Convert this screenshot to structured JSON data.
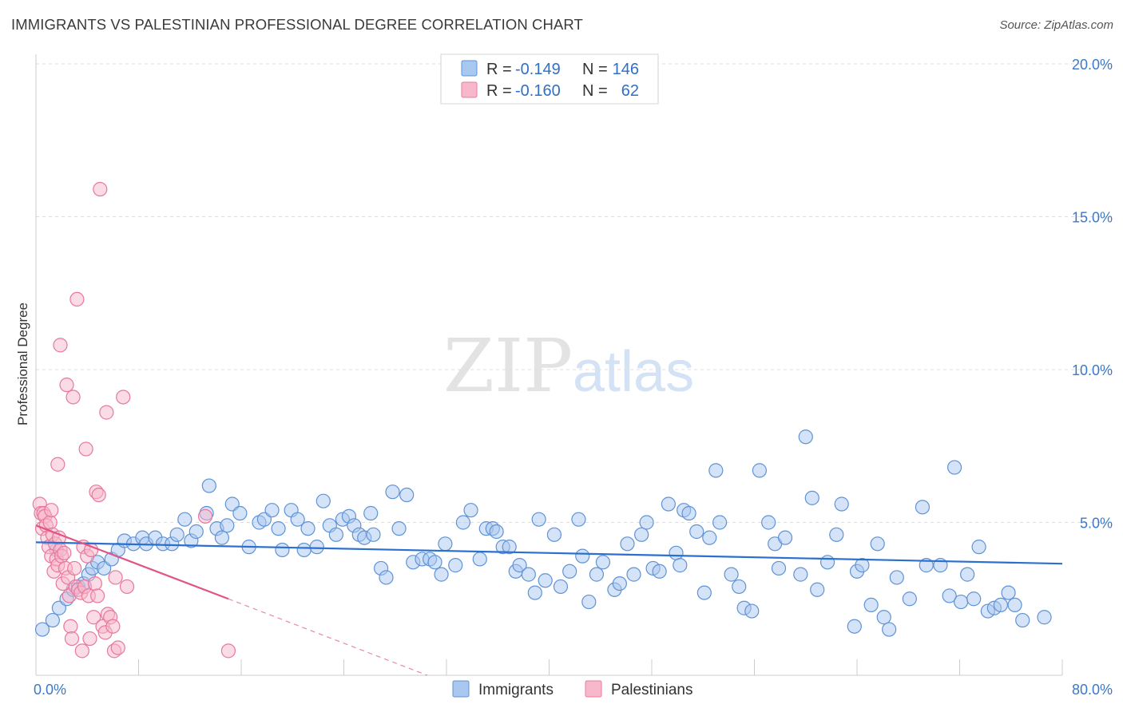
{
  "title": "IMMIGRANTS VS PALESTINIAN PROFESSIONAL DEGREE CORRELATION CHART",
  "source": "Source: ZipAtlas.com",
  "watermark": {
    "zip": "ZIP",
    "atlas": "atlas"
  },
  "legend": {
    "rows": [
      {
        "r_label": "R =",
        "r_value": "-0.149",
        "n_label": "N =",
        "n_value": "146"
      },
      {
        "r_label": "R =",
        "r_value": "-0.160",
        "n_label": "N =",
        "n_value": "62"
      }
    ]
  },
  "bottom_legend": [
    "Immigrants",
    "Palestinians"
  ],
  "colors": {
    "immigrants_fill": "#a9c8ef",
    "immigrants_stroke": "#5f93d6",
    "immigrants_line": "#2b6fcf",
    "palestinians_fill": "#f7b8cb",
    "palestinians_stroke": "#e8789c",
    "palestinians_line": "#e05585",
    "tick_color": "#3d78c7",
    "grid": "#dddddd"
  },
  "chart_data": {
    "type": "scatter",
    "title": "IMMIGRANTS VS PALESTINIAN PROFESSIONAL DEGREE CORRELATION CHART",
    "xlabel": "",
    "ylabel": "Professional Degree",
    "xlim": [
      0,
      80
    ],
    "ylim": [
      0,
      20
    ],
    "x_tick_labels": [
      "0.0%",
      "80.0%"
    ],
    "y_ticks": [
      {
        "value": 5,
        "label": "5.0%"
      },
      {
        "value": 10,
        "label": "10.0%"
      },
      {
        "value": 15,
        "label": "15.0%"
      },
      {
        "value": 20,
        "label": "20.0%"
      }
    ],
    "grid": "horizontal dashed",
    "legend_position": "top-center",
    "series": [
      {
        "name": "Immigrants",
        "r": -0.149,
        "n": 146,
        "trend": {
          "x0": 0,
          "y0": 4.35,
          "x1": 80,
          "y1": 3.65
        },
        "points": [
          [
            0.5,
            1.5
          ],
          [
            1.3,
            1.8
          ],
          [
            1.8,
            2.2
          ],
          [
            2.4,
            2.5
          ],
          [
            2.9,
            2.8
          ],
          [
            3.3,
            2.9
          ],
          [
            3.7,
            3.0
          ],
          [
            4.1,
            3.3
          ],
          [
            4.4,
            3.5
          ],
          [
            4.8,
            3.7
          ],
          [
            5.3,
            3.5
          ],
          [
            5.9,
            3.8
          ],
          [
            6.4,
            4.1
          ],
          [
            6.9,
            4.4
          ],
          [
            7.6,
            4.3
          ],
          [
            8.3,
            4.5
          ],
          [
            8.6,
            4.3
          ],
          [
            9.3,
            4.5
          ],
          [
            9.9,
            4.3
          ],
          [
            10.6,
            4.3
          ],
          [
            11.0,
            4.6
          ],
          [
            11.6,
            5.1
          ],
          [
            12.1,
            4.4
          ],
          [
            12.5,
            4.7
          ],
          [
            13.3,
            5.3
          ],
          [
            13.5,
            6.2
          ],
          [
            14.1,
            4.8
          ],
          [
            14.5,
            4.5
          ],
          [
            14.9,
            4.9
          ],
          [
            15.3,
            5.6
          ],
          [
            15.9,
            5.3
          ],
          [
            16.6,
            4.2
          ],
          [
            17.4,
            5.0
          ],
          [
            17.8,
            5.1
          ],
          [
            18.4,
            5.4
          ],
          [
            18.9,
            4.8
          ],
          [
            19.2,
            4.1
          ],
          [
            19.9,
            5.4
          ],
          [
            20.4,
            5.1
          ],
          [
            20.9,
            4.1
          ],
          [
            21.2,
            4.8
          ],
          [
            21.9,
            4.2
          ],
          [
            22.4,
            5.7
          ],
          [
            22.9,
            4.9
          ],
          [
            23.4,
            4.6
          ],
          [
            23.9,
            5.1
          ],
          [
            24.4,
            5.2
          ],
          [
            24.8,
            4.9
          ],
          [
            25.2,
            4.6
          ],
          [
            25.6,
            4.5
          ],
          [
            26.1,
            5.3
          ],
          [
            26.3,
            4.6
          ],
          [
            26.9,
            3.5
          ],
          [
            27.3,
            3.2
          ],
          [
            27.8,
            6.0
          ],
          [
            28.3,
            4.8
          ],
          [
            28.9,
            5.9
          ],
          [
            29.4,
            3.7
          ],
          [
            30.1,
            3.8
          ],
          [
            30.7,
            3.8
          ],
          [
            31.1,
            3.7
          ],
          [
            31.6,
            3.3
          ],
          [
            31.9,
            4.3
          ],
          [
            32.7,
            3.6
          ],
          [
            33.3,
            5.0
          ],
          [
            33.9,
            5.4
          ],
          [
            34.6,
            3.8
          ],
          [
            35.1,
            4.8
          ],
          [
            35.6,
            4.8
          ],
          [
            35.9,
            4.7
          ],
          [
            36.4,
            4.2
          ],
          [
            36.9,
            4.2
          ],
          [
            37.4,
            3.4
          ],
          [
            37.7,
            3.6
          ],
          [
            38.4,
            3.3
          ],
          [
            38.9,
            2.7
          ],
          [
            39.2,
            5.1
          ],
          [
            39.7,
            3.1
          ],
          [
            40.4,
            4.6
          ],
          [
            40.9,
            2.9
          ],
          [
            41.6,
            3.4
          ],
          [
            42.3,
            5.1
          ],
          [
            42.6,
            3.9
          ],
          [
            43.1,
            2.4
          ],
          [
            43.7,
            3.3
          ],
          [
            44.2,
            3.7
          ],
          [
            45.1,
            2.8
          ],
          [
            45.5,
            3.0
          ],
          [
            46.1,
            4.3
          ],
          [
            46.6,
            3.3
          ],
          [
            47.2,
            4.6
          ],
          [
            47.6,
            5.0
          ],
          [
            48.1,
            3.5
          ],
          [
            48.6,
            3.4
          ],
          [
            49.3,
            5.6
          ],
          [
            49.9,
            4.0
          ],
          [
            50.2,
            3.6
          ],
          [
            50.5,
            5.4
          ],
          [
            50.9,
            5.3
          ],
          [
            51.5,
            4.7
          ],
          [
            52.1,
            2.7
          ],
          [
            52.5,
            4.5
          ],
          [
            53.0,
            6.7
          ],
          [
            53.3,
            5.0
          ],
          [
            54.2,
            3.3
          ],
          [
            54.8,
            2.9
          ],
          [
            55.2,
            2.2
          ],
          [
            55.8,
            2.1
          ],
          [
            56.4,
            6.7
          ],
          [
            57.1,
            5.0
          ],
          [
            57.6,
            4.3
          ],
          [
            57.9,
            3.5
          ],
          [
            58.4,
            4.5
          ],
          [
            59.6,
            3.3
          ],
          [
            60.0,
            7.8
          ],
          [
            60.5,
            5.8
          ],
          [
            60.9,
            2.8
          ],
          [
            61.7,
            3.7
          ],
          [
            62.4,
            4.6
          ],
          [
            62.8,
            5.6
          ],
          [
            64.0,
            3.4
          ],
          [
            64.4,
            3.6
          ],
          [
            65.1,
            2.3
          ],
          [
            65.6,
            4.3
          ],
          [
            66.1,
            1.9
          ],
          [
            66.5,
            1.5
          ],
          [
            67.1,
            3.2
          ],
          [
            68.1,
            2.5
          ],
          [
            69.1,
            5.5
          ],
          [
            69.4,
            3.6
          ],
          [
            70.5,
            3.6
          ],
          [
            71.2,
            2.6
          ],
          [
            71.6,
            6.8
          ],
          [
            72.1,
            2.4
          ],
          [
            72.6,
            3.3
          ],
          [
            73.1,
            2.5
          ],
          [
            73.5,
            4.2
          ],
          [
            74.2,
            2.1
          ],
          [
            74.7,
            2.2
          ],
          [
            75.2,
            2.3
          ],
          [
            75.8,
            2.7
          ],
          [
            76.3,
            2.3
          ],
          [
            76.9,
            1.8
          ],
          [
            78.6,
            1.9
          ],
          [
            1.6,
            4.1
          ],
          [
            63.8,
            1.6
          ]
        ]
      },
      {
        "name": "Palestinians",
        "r": -0.16,
        "n": 62,
        "trend": {
          "x0": 0,
          "y0": 4.9,
          "x1": 15.0,
          "y1": 2.5
        },
        "trend_extended": {
          "x0": 15.0,
          "y0": 2.5,
          "x1": 30.5,
          "y1": 0
        },
        "points": [
          [
            0.3,
            5.6
          ],
          [
            0.4,
            5.3
          ],
          [
            0.5,
            4.8
          ],
          [
            0.6,
            5.3
          ],
          [
            0.7,
            5.2
          ],
          [
            0.8,
            4.9
          ],
          [
            0.9,
            4.5
          ],
          [
            1.0,
            4.2
          ],
          [
            1.1,
            5.0
          ],
          [
            1.2,
            3.9
          ],
          [
            1.2,
            5.4
          ],
          [
            1.3,
            4.6
          ],
          [
            1.4,
            3.4
          ],
          [
            1.5,
            4.3
          ],
          [
            1.6,
            3.8
          ],
          [
            1.7,
            3.6
          ],
          [
            1.8,
            4.5
          ],
          [
            1.9,
            4.1
          ],
          [
            2.0,
            3.9
          ],
          [
            2.1,
            3.0
          ],
          [
            2.2,
            4.0
          ],
          [
            2.3,
            3.5
          ],
          [
            2.4,
            9.5
          ],
          [
            2.5,
            3.2
          ],
          [
            2.6,
            2.6
          ],
          [
            2.7,
            1.6
          ],
          [
            2.8,
            1.2
          ],
          [
            2.9,
            9.1
          ],
          [
            3.0,
            3.5
          ],
          [
            3.1,
            2.9
          ],
          [
            3.2,
            12.3
          ],
          [
            3.3,
            2.8
          ],
          [
            3.5,
            2.7
          ],
          [
            3.6,
            0.8
          ],
          [
            3.7,
            4.2
          ],
          [
            3.8,
            2.9
          ],
          [
            3.9,
            7.4
          ],
          [
            4.0,
            3.9
          ],
          [
            4.1,
            2.6
          ],
          [
            4.2,
            1.2
          ],
          [
            4.3,
            4.1
          ],
          [
            4.5,
            1.9
          ],
          [
            4.6,
            3.0
          ],
          [
            4.7,
            6.0
          ],
          [
            4.8,
            2.6
          ],
          [
            4.9,
            5.9
          ],
          [
            5.0,
            15.9
          ],
          [
            5.2,
            1.6
          ],
          [
            5.4,
            1.4
          ],
          [
            5.6,
            2.0
          ],
          [
            5.8,
            1.9
          ],
          [
            6.0,
            1.6
          ],
          [
            6.1,
            0.8
          ],
          [
            6.2,
            3.2
          ],
          [
            6.4,
            0.9
          ],
          [
            6.8,
            9.1
          ],
          [
            7.1,
            2.9
          ],
          [
            1.7,
            6.9
          ],
          [
            1.9,
            10.8
          ],
          [
            5.5,
            8.6
          ],
          [
            13.2,
            5.2
          ],
          [
            15.0,
            0.8
          ]
        ]
      }
    ]
  }
}
